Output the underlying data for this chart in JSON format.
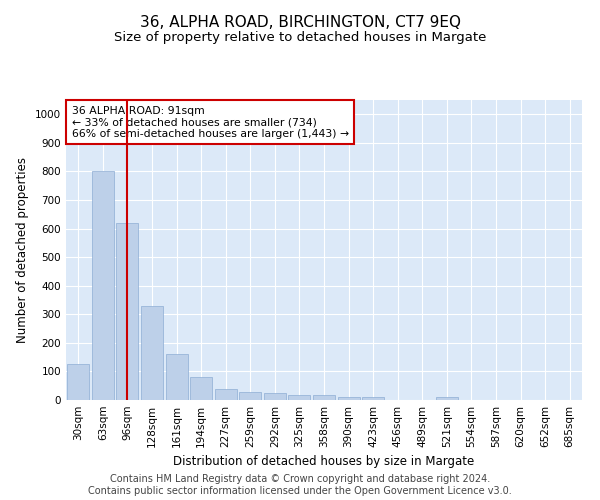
{
  "title": "36, ALPHA ROAD, BIRCHINGTON, CT7 9EQ",
  "subtitle": "Size of property relative to detached houses in Margate",
  "xlabel": "Distribution of detached houses by size in Margate",
  "ylabel": "Number of detached properties",
  "categories": [
    "30sqm",
    "63sqm",
    "96sqm",
    "128sqm",
    "161sqm",
    "194sqm",
    "227sqm",
    "259sqm",
    "292sqm",
    "325sqm",
    "358sqm",
    "390sqm",
    "423sqm",
    "456sqm",
    "489sqm",
    "521sqm",
    "554sqm",
    "587sqm",
    "620sqm",
    "652sqm",
    "685sqm"
  ],
  "values": [
    125,
    800,
    620,
    328,
    162,
    82,
    40,
    27,
    24,
    17,
    16,
    9,
    10,
    0,
    0,
    9,
    0,
    0,
    0,
    0,
    0
  ],
  "bar_color": "#bdd0e9",
  "bar_edge_color": "#8eadd4",
  "vline_x": 2.0,
  "vline_color": "#cc0000",
  "annotation_text": "36 ALPHA ROAD: 91sqm\n← 33% of detached houses are smaller (734)\n66% of semi-detached houses are larger (1,443) →",
  "annotation_box_color": "#ffffff",
  "annotation_box_edge": "#cc0000",
  "footer": "Contains HM Land Registry data © Crown copyright and database right 2024.\nContains public sector information licensed under the Open Government Licence v3.0.",
  "ylim": [
    0,
    1050
  ],
  "yticks": [
    0,
    100,
    200,
    300,
    400,
    500,
    600,
    700,
    800,
    900,
    1000
  ],
  "background_color": "#dce9f8",
  "grid_color": "#ffffff",
  "title_fontsize": 11,
  "subtitle_fontsize": 9.5,
  "axis_label_fontsize": 8.5,
  "tick_fontsize": 7.5,
  "footer_fontsize": 7
}
